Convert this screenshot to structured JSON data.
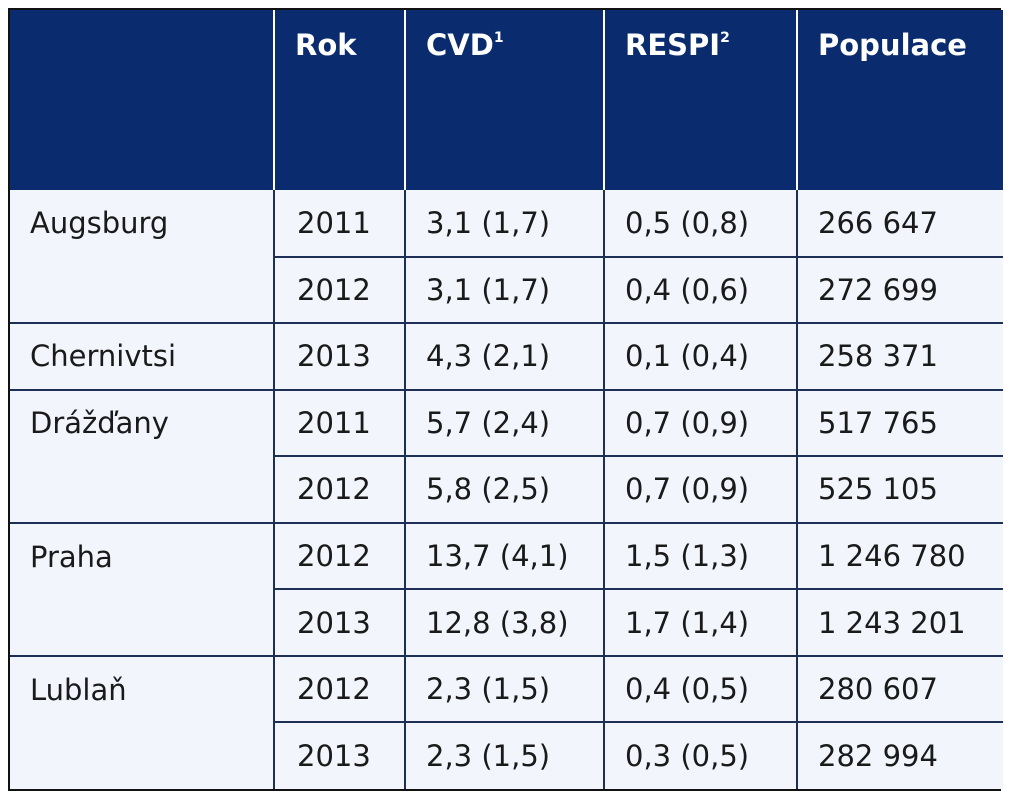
{
  "table": {
    "headers": [
      {
        "label": "",
        "sup": ""
      },
      {
        "label": "Rok",
        "sup": ""
      },
      {
        "label": "CVD",
        "sup": "1"
      },
      {
        "label": "RESPI",
        "sup": "2"
      },
      {
        "label": "Populace",
        "sup": ""
      }
    ],
    "rows": [
      {
        "city": "Augsburg",
        "year": "2011",
        "cvd": "3,1 (1,7)",
        "respi": "0,5 (0,8)",
        "population": "266 647"
      },
      {
        "city": "",
        "year": "2012",
        "cvd": "3,1 (1,7)",
        "respi": "0,4 (0,6)",
        "population": "272 699"
      },
      {
        "city": "Chernivtsi",
        "year": "2013",
        "cvd": "4,3 (2,1)",
        "respi": "0,1 (0,4)",
        "population": "258 371"
      },
      {
        "city": "Drážďany",
        "year": "2011",
        "cvd": "5,7 (2,4)",
        "respi": "0,7 (0,9)",
        "population": "517 765"
      },
      {
        "city": "",
        "year": "2012",
        "cvd": "5,8 (2,5)",
        "respi": "0,7 (0,9)",
        "population": "525 105"
      },
      {
        "city": "Praha",
        "year": "2012",
        "cvd": "13,7 (4,1)",
        "respi": "1,5 (1,3)",
        "population": "1 246 780"
      },
      {
        "city": "",
        "year": "2013",
        "cvd": "12,8 (3,8)",
        "respi": "1,7 (1,4)",
        "population": "1 243 201"
      },
      {
        "city": "Lublaň",
        "year": "2012",
        "cvd": "2,3 (1,5)",
        "respi": "0,4 (0,5)",
        "population": "280 607"
      },
      {
        "city": "",
        "year": "2013",
        "cvd": "2,3 (1,5)",
        "respi": "0,3 (0,5)",
        "population": "282 994"
      }
    ]
  }
}
